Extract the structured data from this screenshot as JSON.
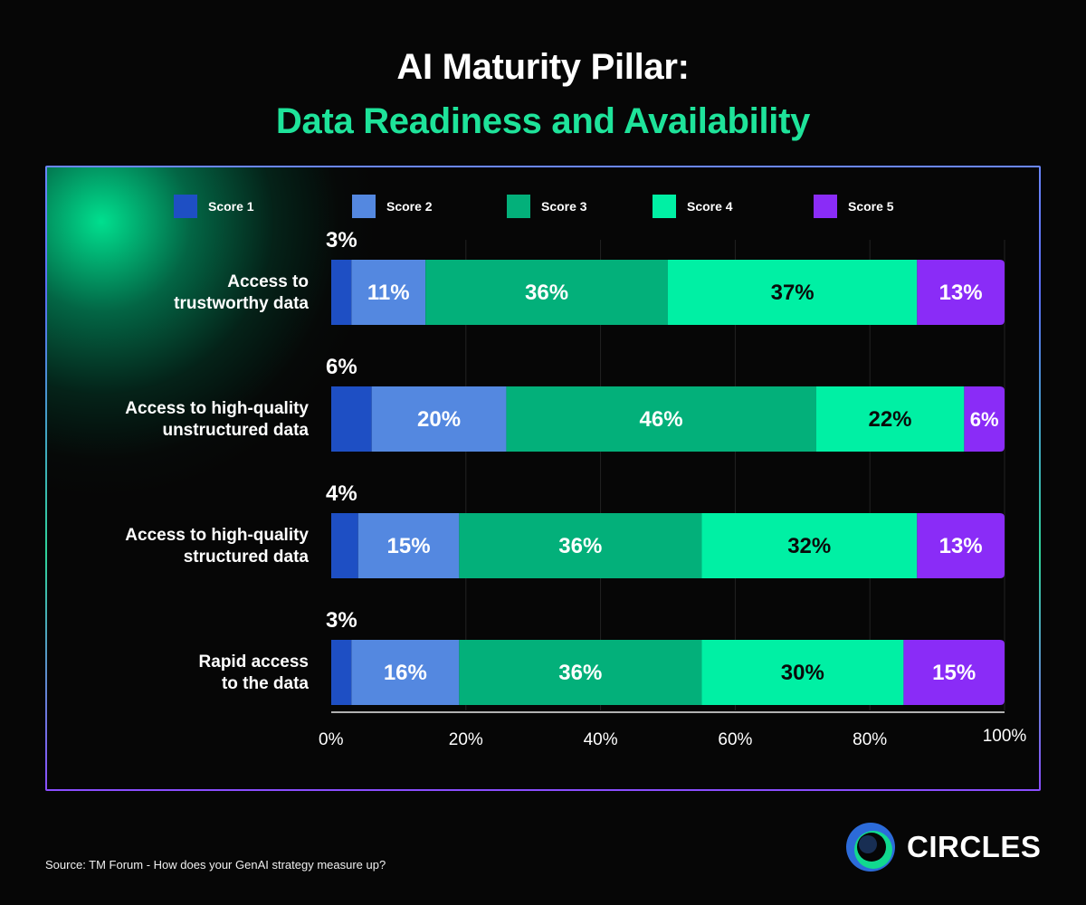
{
  "header": {
    "title_line1": "AI Maturity Pillar:",
    "title_line2": "Data Readiness and Availability",
    "title_accent_color": "#1ee39a"
  },
  "chart_data": {
    "type": "bar",
    "orientation": "horizontal",
    "stacked": true,
    "title": "AI Maturity Pillar: Data Readiness and Availability",
    "categories": [
      "Access to trustworthy data",
      "Access to high-quality unstructured data",
      "Access to high-quality structured data",
      "Rapid access to the data"
    ],
    "category_lines": [
      [
        "Access to",
        "trustworthy data"
      ],
      [
        "Access to high-quality",
        "unstructured data"
      ],
      [
        "Access to high-quality",
        "structured data"
      ],
      [
        "Rapid access",
        "to the data"
      ]
    ],
    "series": [
      {
        "name": "Score 1",
        "color": "#1e4fc4",
        "values": [
          3,
          6,
          4,
          3
        ],
        "labels": [
          "3%",
          "6%",
          "4%",
          "3%"
        ]
      },
      {
        "name": "Score 2",
        "color": "#5488e0",
        "values": [
          11,
          20,
          15,
          16
        ],
        "labels": [
          "11%",
          "20%",
          "15%",
          "16%"
        ]
      },
      {
        "name": "Score 3",
        "color": "#03b07a",
        "values": [
          36,
          46,
          36,
          36
        ],
        "labels": [
          "36%",
          "46%",
          "36%",
          "36%"
        ]
      },
      {
        "name": "Score 4",
        "color": "#00f0a4",
        "values": [
          37,
          22,
          32,
          30
        ],
        "labels": [
          "37%",
          "22%",
          "32%",
          "30%"
        ]
      },
      {
        "name": "Score 5",
        "color": "#8a2cf7",
        "values": [
          13,
          6,
          13,
          15
        ],
        "labels": [
          "13%",
          "6%",
          "13%",
          "15%"
        ]
      }
    ],
    "x_ticks": [
      "0%",
      "20%",
      "40%",
      "60%",
      "80%",
      "100%"
    ],
    "xlim": [
      0,
      100
    ],
    "grid": true,
    "legend_position": "top"
  },
  "footer": {
    "source": "Source: TM Forum - How does your GenAI strategy measure up?",
    "brand": "CIRCLES"
  }
}
